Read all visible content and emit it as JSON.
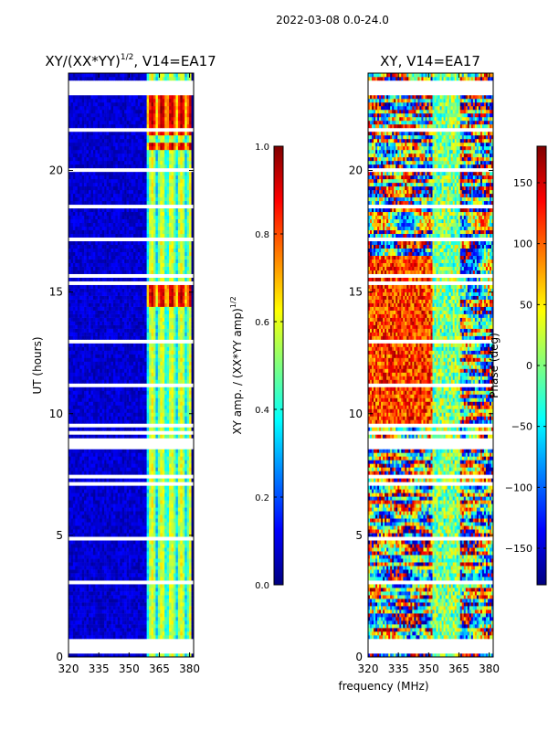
{
  "figure": {
    "suptitle": "2022-03-08 0.0-24.0",
    "xlabel": "frequency (MHz)"
  },
  "colors": {
    "jet": [
      "#00007f",
      "#0000ff",
      "#007fff",
      "#00ffff",
      "#7fff7f",
      "#ffff00",
      "#ff7f00",
      "#ff0000",
      "#7f0000"
    ],
    "blank_row": "#ffffff",
    "axis": "#000000"
  },
  "chart_data": [
    {
      "type": "heatmap",
      "title_main": "XY/(XX*YY)",
      "title_sup": "1/2",
      "title_tail": ", V14=EA17",
      "ylabel": "UT (hours)",
      "x_range": [
        320,
        382
      ],
      "y_range": [
        0,
        24
      ],
      "x_ticks": [
        320,
        335,
        350,
        365,
        380
      ],
      "y_ticks": [
        0,
        5,
        10,
        15,
        20
      ],
      "x_tick_labels": [
        "320",
        "335",
        "350",
        "365",
        "380"
      ],
      "y_tick_labels": [
        "0",
        "5",
        "10",
        "15",
        "20"
      ],
      "value_range": [
        0.0,
        1.0
      ],
      "description": "Normalized XY amplitude; near 0 for 320-359 MHz, elevated (0.3-0.6) for 359-381 MHz, peaks near 0.9 around 14.5-15.2 h and 21.5-23.5 h",
      "colorbar": {
        "label_main": "XY amp. / (XX*YY amp)",
        "label_sup": "1/2",
        "ticks": [
          0.0,
          0.2,
          0.4,
          0.6,
          0.8,
          1.0
        ],
        "tick_labels": [
          "0.0",
          "0.2",
          "0.4",
          "0.6",
          "0.8",
          "1.0"
        ]
      }
    },
    {
      "type": "heatmap",
      "title": "XY, V14=EA17",
      "x_range": [
        320,
        382
      ],
      "y_range": [
        0,
        24
      ],
      "x_ticks": [
        320,
        335,
        350,
        365,
        380
      ],
      "y_ticks": [
        0,
        5,
        10,
        15,
        20
      ],
      "x_tick_labels": [
        "320",
        "335",
        "350",
        "365",
        "380"
      ],
      "y_tick_labels": [
        "0",
        "5",
        "10",
        "15",
        "20"
      ],
      "value_range": [
        -180,
        180
      ],
      "description": "XY phase in degrees; noisy, spanning the full range",
      "colorbar": {
        "label": "Phase (deg)",
        "ticks": [
          -150,
          -100,
          -50,
          0,
          50,
          100,
          150
        ],
        "tick_labels": [
          "−150",
          "−100",
          "−50",
          "0",
          "50",
          "100",
          "150"
        ]
      }
    }
  ]
}
